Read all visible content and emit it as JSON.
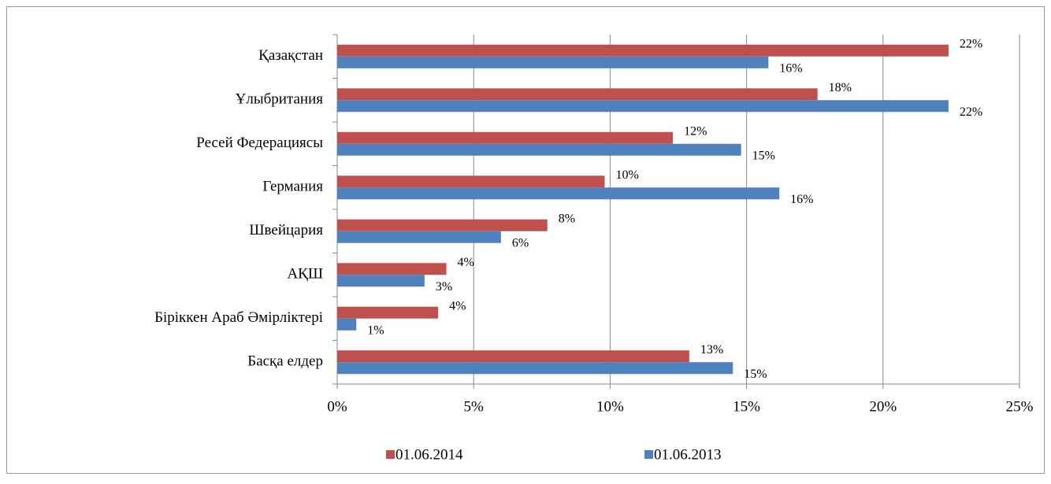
{
  "chart_data": {
    "type": "hbar",
    "categories": [
      "Қазақстан",
      "Ұлыбритания",
      "Ресей Федерациясы",
      "Германия",
      "Швейцария",
      "АҚШ",
      "Біріккен Араб Әмірліктері",
      "Басқа елдер"
    ],
    "series": [
      {
        "name": "01.06.2014",
        "color": "#c0504d",
        "values": [
          22.4,
          17.6,
          12.3,
          9.8,
          7.7,
          4.0,
          3.7,
          12.9
        ],
        "value_labels": [
          "22%",
          "18%",
          "12%",
          "10%",
          "8%",
          "4%",
          "4%",
          "13%"
        ]
      },
      {
        "name": "01.06.2013",
        "color": "#4f81bd",
        "values": [
          15.8,
          22.4,
          14.8,
          16.2,
          6.0,
          3.2,
          0.7,
          14.5
        ],
        "value_labels": [
          "16%",
          "22%",
          "15%",
          "16%",
          "6%",
          "3%",
          "1%",
          "15%"
        ]
      }
    ],
    "xlim": [
      0,
      25
    ],
    "xticks": [
      {
        "value": 0,
        "label": "0%"
      },
      {
        "value": 5,
        "label": "5%"
      },
      {
        "value": 10,
        "label": "10%"
      },
      {
        "value": 15,
        "label": "15%"
      },
      {
        "value": 20,
        "label": "20%"
      },
      {
        "value": 25,
        "label": "25%"
      }
    ],
    "grid": true,
    "legend": "bottom"
  }
}
